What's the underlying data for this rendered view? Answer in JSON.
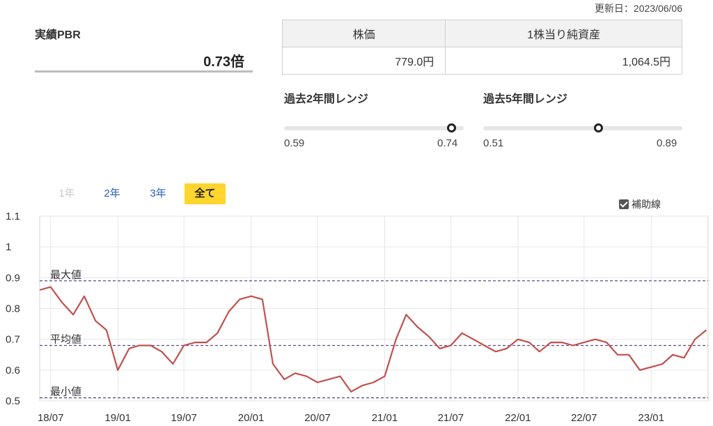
{
  "updated": "更新日：2023/06/06",
  "pbr": {
    "label": "実績PBR",
    "value": "0.73倍"
  },
  "table": {
    "headers": [
      "株価",
      "1株当り純資産"
    ],
    "values": [
      "779.0円",
      "1,064.5円"
    ]
  },
  "range2y": {
    "title": "過去2年間レンジ",
    "min": "0.59",
    "max": "0.74",
    "current": 0.73
  },
  "range5y": {
    "title": "過去5年間レンジ",
    "min": "0.51",
    "max": "0.89",
    "current": 0.73
  },
  "tabs": [
    "1年",
    "2年",
    "3年",
    "全て"
  ],
  "aux_label": "補助線",
  "colors": {
    "line": "#c0504d",
    "guide": "#5b4a8a",
    "tab_active": "#ffd52e",
    "tab_link": "#2a5fb0"
  },
  "chart_data": {
    "type": "line",
    "grid": true,
    "ylim": [
      0.5,
      1.1
    ],
    "yticks": [
      "1.1",
      "1",
      "0.9",
      "0.8",
      "0.7",
      "0.6",
      "0.5"
    ],
    "xticks": [
      "18/07",
      "19/01",
      "19/07",
      "20/01",
      "20/07",
      "21/01",
      "21/07",
      "22/01",
      "22/07",
      "23/01"
    ],
    "reference_lines": [
      {
        "label": "最大値",
        "value": 0.89
      },
      {
        "label": "平均値",
        "value": 0.68
      },
      {
        "label": "最小値",
        "value": 0.51
      }
    ],
    "series": [
      {
        "x": [
          "2018-06",
          "2018-07",
          "2018-08",
          "2018-09",
          "2018-10",
          "2018-11",
          "2018-12",
          "2019-01",
          "2019-02",
          "2019-03",
          "2019-04",
          "2019-05",
          "2019-06",
          "2019-07",
          "2019-08",
          "2019-09",
          "2019-10",
          "2019-11",
          "2019-12",
          "2020-01",
          "2020-02",
          "2020-03",
          "2020-04",
          "2020-05",
          "2020-06",
          "2020-07",
          "2020-08",
          "2020-09",
          "2020-10",
          "2020-11",
          "2020-12",
          "2021-01",
          "2021-02",
          "2021-03",
          "2021-04",
          "2021-05",
          "2021-06",
          "2021-07",
          "2021-08",
          "2021-09",
          "2021-10",
          "2021-11",
          "2021-12",
          "2022-01",
          "2022-02",
          "2022-03",
          "2022-04",
          "2022-05",
          "2022-06",
          "2022-07",
          "2022-08",
          "2022-09",
          "2022-10",
          "2022-11",
          "2022-12",
          "2023-01",
          "2023-02",
          "2023-03",
          "2023-04",
          "2023-05",
          "2023-06"
        ],
        "values": [
          0.86,
          0.87,
          0.82,
          0.78,
          0.84,
          0.76,
          0.73,
          0.6,
          0.67,
          0.68,
          0.68,
          0.66,
          0.62,
          0.68,
          0.69,
          0.69,
          0.72,
          0.79,
          0.83,
          0.84,
          0.83,
          0.62,
          0.57,
          0.59,
          0.58,
          0.56,
          0.57,
          0.58,
          0.53,
          0.55,
          0.56,
          0.58,
          0.7,
          0.78,
          0.74,
          0.71,
          0.67,
          0.68,
          0.72,
          0.7,
          0.68,
          0.66,
          0.67,
          0.7,
          0.69,
          0.66,
          0.69,
          0.69,
          0.68,
          0.69,
          0.7,
          0.69,
          0.65,
          0.65,
          0.6,
          0.61,
          0.62,
          0.65,
          0.64,
          0.7,
          0.73
        ]
      }
    ]
  }
}
